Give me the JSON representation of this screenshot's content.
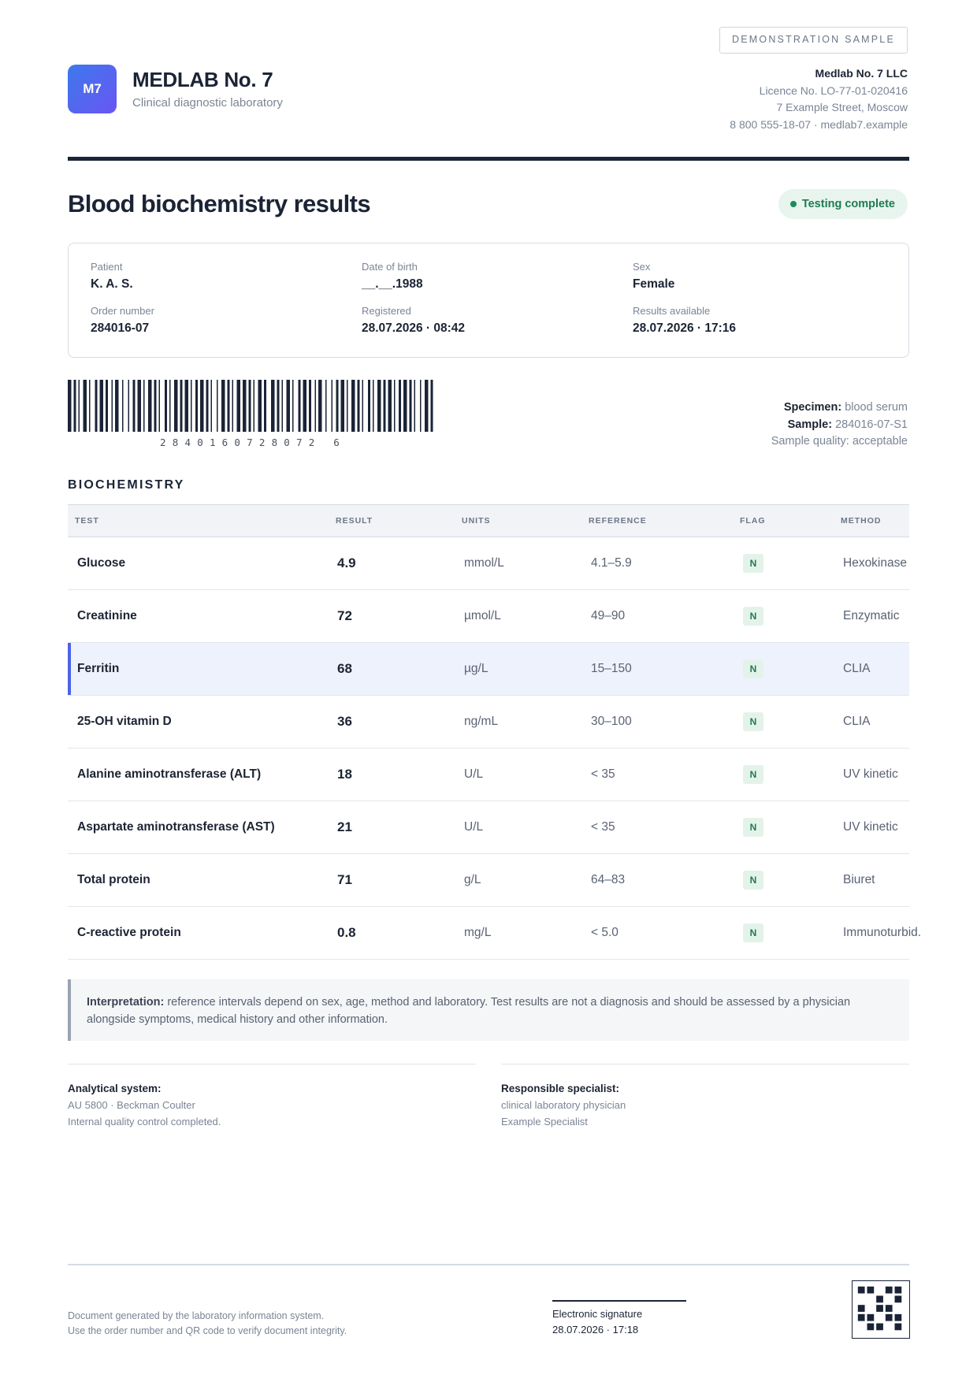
{
  "header": {
    "demo_badge": "DEMONSTRATION SAMPLE",
    "logo_text": "M7",
    "lab_name": "MEDLAB No. 7",
    "lab_subtitle": "Clinical diagnostic laboratory",
    "org_name": "Medlab No. 7 LLC",
    "licence": "Licence No. LO-77-01-020416",
    "address": "7 Example Street, Moscow",
    "contact": "8 800 555-18-07 · medlab7.example"
  },
  "report": {
    "title": "Blood biochemistry results",
    "status": "Testing complete"
  },
  "patient": {
    "patient_label": "Patient",
    "patient_value": "K. A. S.",
    "dob_label": "Date of birth",
    "dob_value": "__.__.1988",
    "sex_label": "Sex",
    "sex_value": "Female",
    "order_label": "Order number",
    "order_value": "284016-07",
    "registered_label": "Registered",
    "registered_value": "28.07.2026 · 08:42",
    "results_label": "Results available",
    "results_value": "28.07.2026 · 17:16"
  },
  "barcode": {
    "digits": "2840160728072 6"
  },
  "specimen": {
    "specimen_label": "Specimen:",
    "specimen_value": "blood serum",
    "sample_label": "Sample:",
    "sample_value": "284016-07-S1",
    "quality": "Sample quality: acceptable"
  },
  "section": {
    "title": "BIOCHEMISTRY",
    "columns": [
      "TEST",
      "RESULT",
      "UNITS",
      "REFERENCE",
      "FLAG",
      "METHOD"
    ],
    "rows": [
      {
        "test": "Glucose",
        "result": "4.9",
        "units": "mmol/L",
        "reference": "4.1–5.9",
        "flag": "N",
        "method": "Hexokinase"
      },
      {
        "test": "Creatinine",
        "result": "72",
        "units": "µmol/L",
        "reference": "49–90",
        "flag": "N",
        "method": "Enzymatic"
      },
      {
        "test": "Ferritin",
        "result": "68",
        "units": "µg/L",
        "reference": "15–150",
        "flag": "N",
        "method": "CLIA"
      },
      {
        "test": "25-OH vitamin D",
        "result": "36",
        "units": "ng/mL",
        "reference": "30–100",
        "flag": "N",
        "method": "CLIA"
      },
      {
        "test": "Alanine aminotransferase (ALT)",
        "result": "18",
        "units": "U/L",
        "reference": "< 35",
        "flag": "N",
        "method": "UV kinetic"
      },
      {
        "test": "Aspartate aminotransferase (AST)",
        "result": "21",
        "units": "U/L",
        "reference": "< 35",
        "flag": "N",
        "method": "UV kinetic"
      },
      {
        "test": "Total protein",
        "result": "71",
        "units": "g/L",
        "reference": "64–83",
        "flag": "N",
        "method": "Biuret"
      },
      {
        "test": "C-reactive protein",
        "result": "0.8",
        "units": "mg/L",
        "reference": "< 5.0",
        "flag": "N",
        "method": "Immunoturbid."
      }
    ]
  },
  "interpretation": {
    "label": "Interpretation:",
    "text": "reference intervals depend on sex, age, method and laboratory. Test results are not a diagnosis and should be assessed by a physician alongside symptoms, medical history and other information."
  },
  "analytical": {
    "heading": "Analytical system:",
    "line1": "AU 5800 · Beckman Coulter",
    "line2": "Internal quality control completed."
  },
  "specialist": {
    "heading": "Responsible specialist:",
    "line1": "clinical laboratory physician",
    "line2": "Example Specialist"
  },
  "footer": {
    "note1": "Document generated by the laboratory information system.",
    "note2": "Use the order number and QR code to verify document integrity.",
    "signature_label": "Electronic signature",
    "signature_time": "28.07.2026 · 17:18"
  },
  "colors": {
    "accent": "#4c63e6",
    "status_green": "#1f7a52",
    "ink": "#1b2436"
  }
}
